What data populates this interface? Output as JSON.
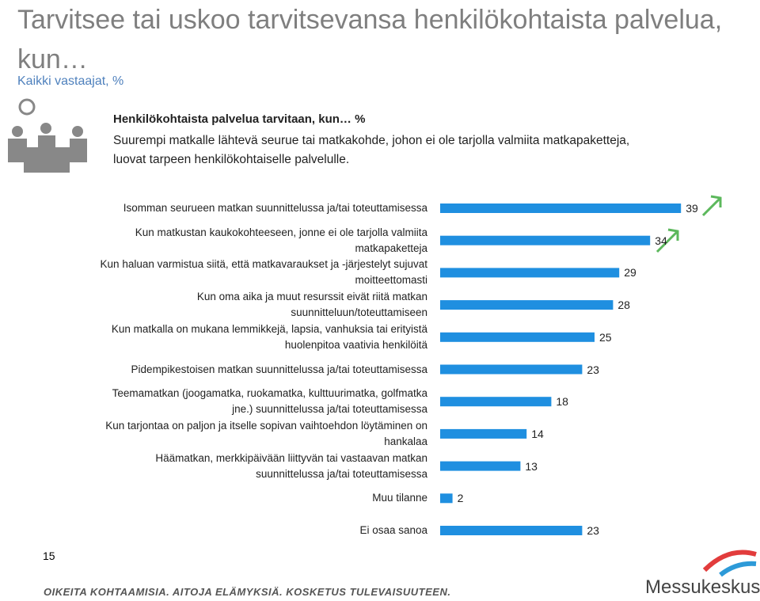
{
  "header": {
    "title": "Tarvitsee tai uskoo tarvitsevansa henkilökohtaista palvelua, kun…",
    "subtitle": "Kaikki vastaajat, %"
  },
  "note": {
    "heading": "Henkilökohtaista palvelua tarvitaan, kun… %",
    "text": "Suurempi matkalle lähtevä seurue tai matkakohde, johon ei ole tarjolla valmiita matkapaketteja, luovat tarpeen henkilökohtaiselle palvelulle."
  },
  "chart_data": {
    "type": "bar",
    "categories": [
      "Isomman seurueen matkan suunnittelussa ja/tai toteuttamisessa",
      "Kun matkustan kaukokohteeseen, jonne ei ole tarjolla valmiita\nmatkapaketteja",
      "Kun haluan varmistua siitä, että matkavaraukset ja -järjestelyt sujuvat\nmoitteettomasti",
      "Kun oma aika ja muut resurssit eivät riitä matkan\nsuunnitteluun/toteuttamiseen",
      "Kun matkalla on mukana lemmikkejä, lapsia, vanhuksia tai erityistä\nhuolenpitoa vaativia henkilöitä",
      "Pidempikestoisen matkan suunnittelussa ja/tai toteuttamisessa",
      "Teemamatkan (joogamatka, ruokamatka, kulttuurimatka, golfmatka\njne.) suunnittelussa ja/tai toteuttamisessa",
      "Kun tarjontaa on paljon ja itselle sopivan vaihtoehdon löytäminen on\nhankalaa",
      "Häämatkan, merkkipäivään liittyvän tai vastaavan matkan\nsuunnittelussa ja/tai toteuttamisessa",
      "Muu tilanne",
      "Ei osaa sanoa"
    ],
    "values": [
      39,
      34,
      29,
      28,
      25,
      23,
      18,
      14,
      13,
      2,
      23
    ],
    "color": "#1f8fe0",
    "xlim": [
      0,
      40
    ]
  },
  "page_number": "15",
  "footer": {
    "slogan": "OIKEITA KOHTAAMISIA. AITOJA ELÄMYKSIÄ. KOSKETUS TULEVAISUUTEEN.",
    "logo": "Messukeskus"
  }
}
